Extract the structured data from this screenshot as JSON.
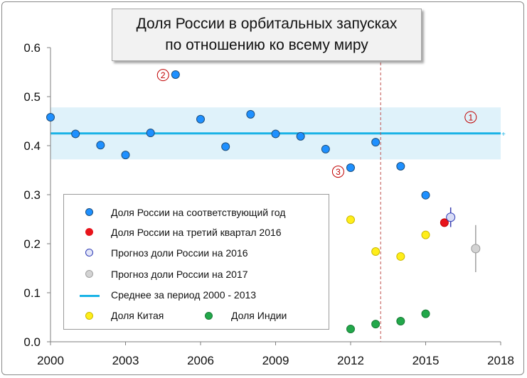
{
  "title": {
    "line1": "Доля России в орбитальных запусках",
    "line2": "по отношению ко всему миру"
  },
  "chart_data": {
    "type": "scatter",
    "xlim": [
      2000,
      2018
    ],
    "ylim": [
      0,
      0.6
    ],
    "x_ticks": [
      "2000",
      "2003",
      "2006",
      "2009",
      "2012",
      "2015",
      "2018"
    ],
    "y_ticks": [
      "0.0",
      "0.1",
      "0.2",
      "0.3",
      "0.4",
      "0.5",
      "0.6"
    ],
    "grid": false,
    "legend_position": "bottom-left",
    "series": [
      {
        "name": "Доля России на соответствующий год",
        "color": "#1e90ff",
        "x": [
          2000,
          2001,
          2002,
          2003,
          2004,
          2005,
          2006,
          2007,
          2008,
          2009,
          2010,
          2011,
          2012,
          2013,
          2014,
          2015
        ],
        "y": [
          0.458,
          0.424,
          0.401,
          0.381,
          0.426,
          0.545,
          0.454,
          0.398,
          0.464,
          0.424,
          0.419,
          0.393,
          0.355,
          0.407,
          0.358,
          0.299
        ]
      },
      {
        "name": "Доля России на третий квартал 2016",
        "color": "#e8141b",
        "x": [
          2015.75
        ],
        "y": [
          0.243
        ]
      },
      {
        "name": "Прогноз доли России на 2016",
        "color": "#d8dcf6",
        "x": [
          2016
        ],
        "y": [
          0.254
        ],
        "error": [
          0.02
        ]
      },
      {
        "name": "Прогноз доли России на 2017",
        "color": "#d3d3d3",
        "x": [
          2017
        ],
        "y": [
          0.19
        ],
        "error": [
          0.048
        ]
      },
      {
        "name": "Доля Китая",
        "color": "#ffee1a",
        "x": [
          2012,
          2013,
          2014,
          2015
        ],
        "y": [
          0.249,
          0.184,
          0.174,
          0.218
        ]
      },
      {
        "name": "Доля Индии",
        "color": "#22a84a",
        "x": [
          2012,
          2013,
          2014,
          2015
        ],
        "y": [
          0.026,
          0.036,
          0.042,
          0.057
        ]
      }
    ],
    "mean": {
      "name": "Среднее за период  2000 - 2013",
      "value": 0.425,
      "band": [
        0.372,
        0.478
      ],
      "color": "#1ab3e6",
      "band_color": "#dff2fa"
    },
    "vline": {
      "x": 2013.2,
      "color": "#c0504d"
    },
    "annotations": [
      {
        "label": "1",
        "x": 2016.8,
        "y": 0.458
      },
      {
        "label": "2",
        "x": 2004.5,
        "y": 0.544
      },
      {
        "label": "3",
        "x": 2011.5,
        "y": 0.347
      }
    ]
  }
}
